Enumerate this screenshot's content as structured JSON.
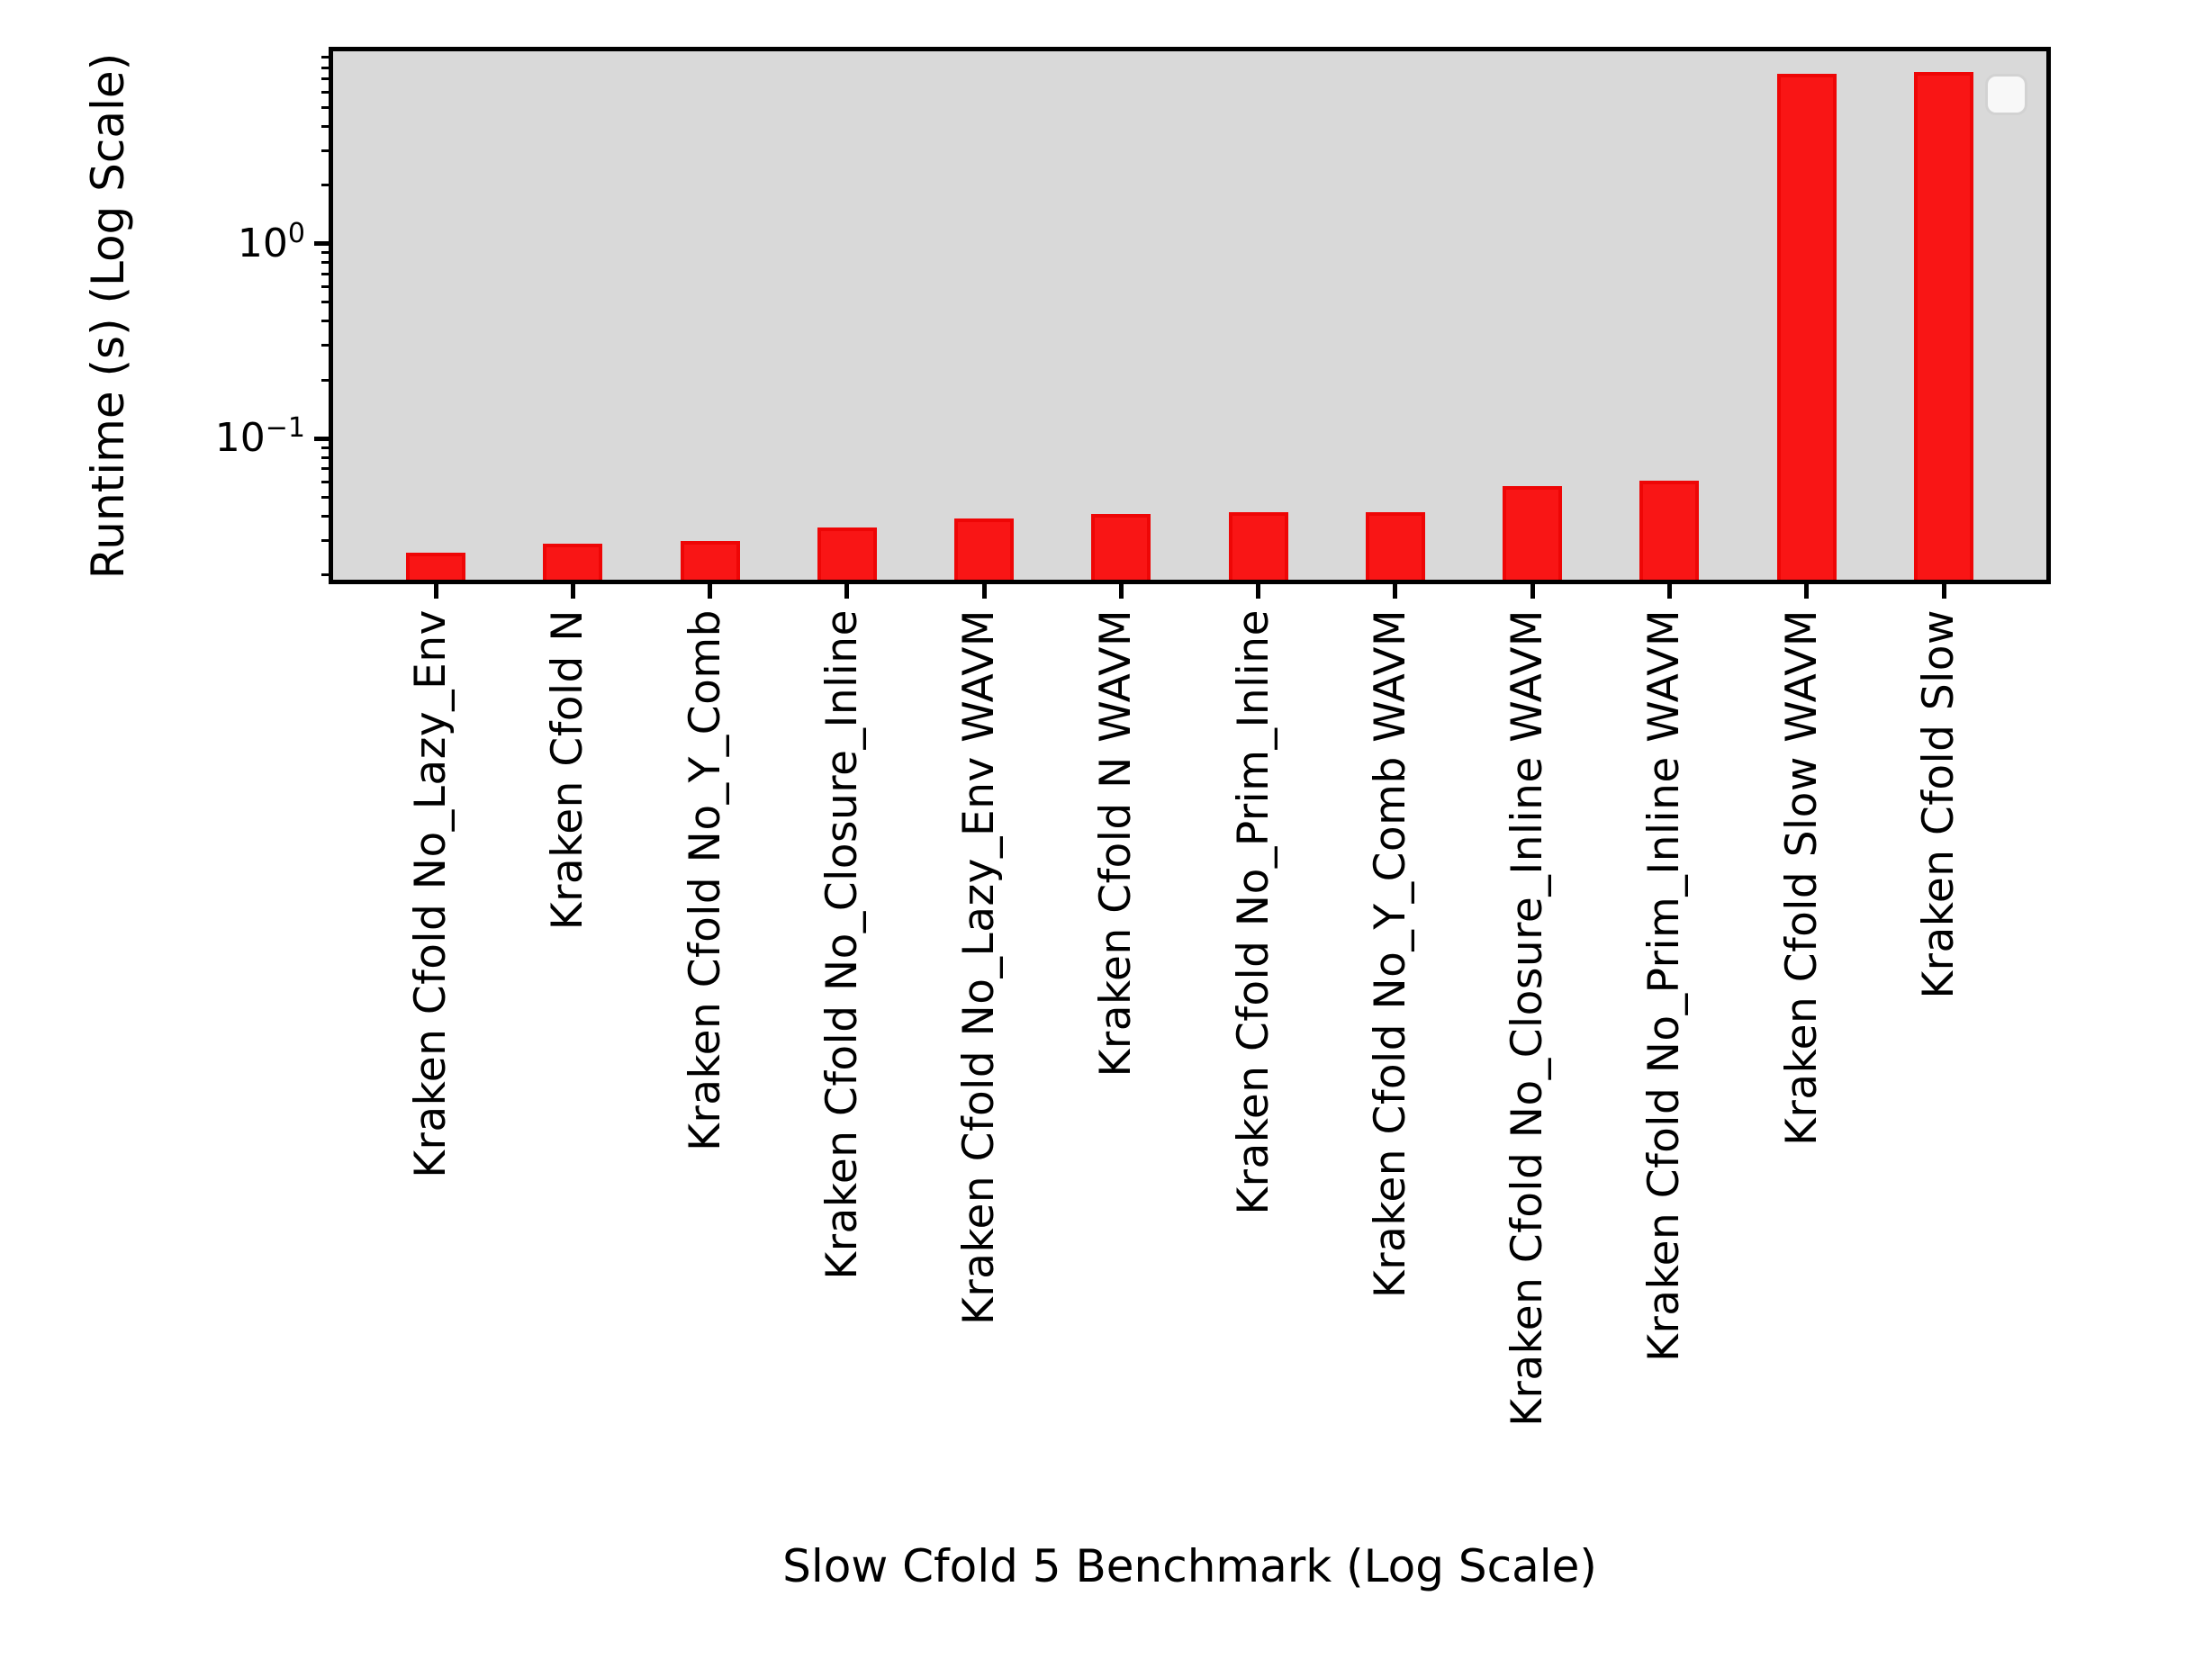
{
  "chart_data": {
    "type": "bar",
    "title": "",
    "xlabel": "Slow Cfold 5 Benchmark (Log Scale)",
    "ylabel": "Runtime (s) (Log Scale)",
    "yscale": "log",
    "ylim": [
      0.0185,
      9.9
    ],
    "grid": false,
    "legend": {
      "visible": true,
      "entries": [],
      "location": "upper right"
    },
    "categories": [
      "Kraken Cfold No_Lazy_Env",
      "Kraken Cfold N",
      "Kraken Cfold No_Y_Comb",
      "Kraken Cfold No_Closure_Inline",
      "Kraken Cfold No_Lazy_Env WAVM",
      "Kraken Cfold N WAVM",
      "Kraken Cfold No_Prim_Inline",
      "Kraken Cfold No_Y_Comb WAVM",
      "Kraken Cfold No_Closure_Inline WAVM",
      "Kraken Cfold No_Prim_Inline WAVM",
      "Kraken Cfold Slow WAVM",
      "Kraken Cfold Slow"
    ],
    "values": [
      0.026,
      0.029,
      0.03,
      0.035,
      0.039,
      0.041,
      0.042,
      0.042,
      0.057,
      0.061,
      7.4,
      7.6
    ],
    "yticks": [
      {
        "value": 1,
        "label_base": "10",
        "label_exp": "0"
      },
      {
        "value": 0.1,
        "label_base": "10",
        "label_exp": "−1"
      }
    ],
    "colors": {
      "bar_fill": "#f91515",
      "bar_edge": "#ee0606",
      "plot_background": "#d9d9d9",
      "figure_background": "#ffffff",
      "axis": "#000000",
      "legend_border": "#d2d2d2",
      "legend_fill": "#f8f8f8"
    }
  }
}
